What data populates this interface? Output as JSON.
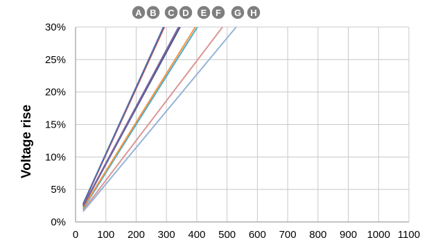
{
  "chart_data": {
    "type": "line",
    "ylabel": "Voltage rise",
    "xlim": [
      0,
      1100
    ],
    "ylim": [
      0,
      30
    ],
    "x_ticks": [
      "0",
      "100",
      "200",
      "300",
      "400",
      "500",
      "600",
      "700",
      "800",
      "900",
      "1000",
      "1100"
    ],
    "y_ticks": [
      "0%",
      "5%",
      "10%",
      "15%",
      "20%",
      "25%",
      "30%"
    ],
    "grid": true,
    "legend_position": "top",
    "series": [
      {
        "name": "A",
        "color": "#4f6fad",
        "x": [
          25,
          290
        ],
        "y": [
          2.8,
          30
        ]
      },
      {
        "name": "B",
        "color": "#c0504d",
        "x": [
          25,
          293
        ],
        "y": [
          2.7,
          30
        ]
      },
      {
        "name": "C",
        "color": "#8064a2",
        "x": [
          25,
          340
        ],
        "y": [
          2.5,
          30
        ]
      },
      {
        "name": "D",
        "color": "#4a5a8a",
        "x": [
          25,
          345
        ],
        "y": [
          2.4,
          30
        ]
      },
      {
        "name": "E",
        "color": "#f79646",
        "x": [
          25,
          395
        ],
        "y": [
          2.2,
          30
        ]
      },
      {
        "name": "F",
        "color": "#4bacc6",
        "x": [
          25,
          402
        ],
        "y": [
          2.0,
          30
        ]
      },
      {
        "name": "G",
        "color": "#d99694",
        "x": [
          25,
          485
        ],
        "y": [
          1.8,
          30
        ]
      },
      {
        "name": "H",
        "color": "#95b3d7",
        "x": [
          25,
          530
        ],
        "y": [
          1.6,
          30
        ]
      }
    ]
  }
}
